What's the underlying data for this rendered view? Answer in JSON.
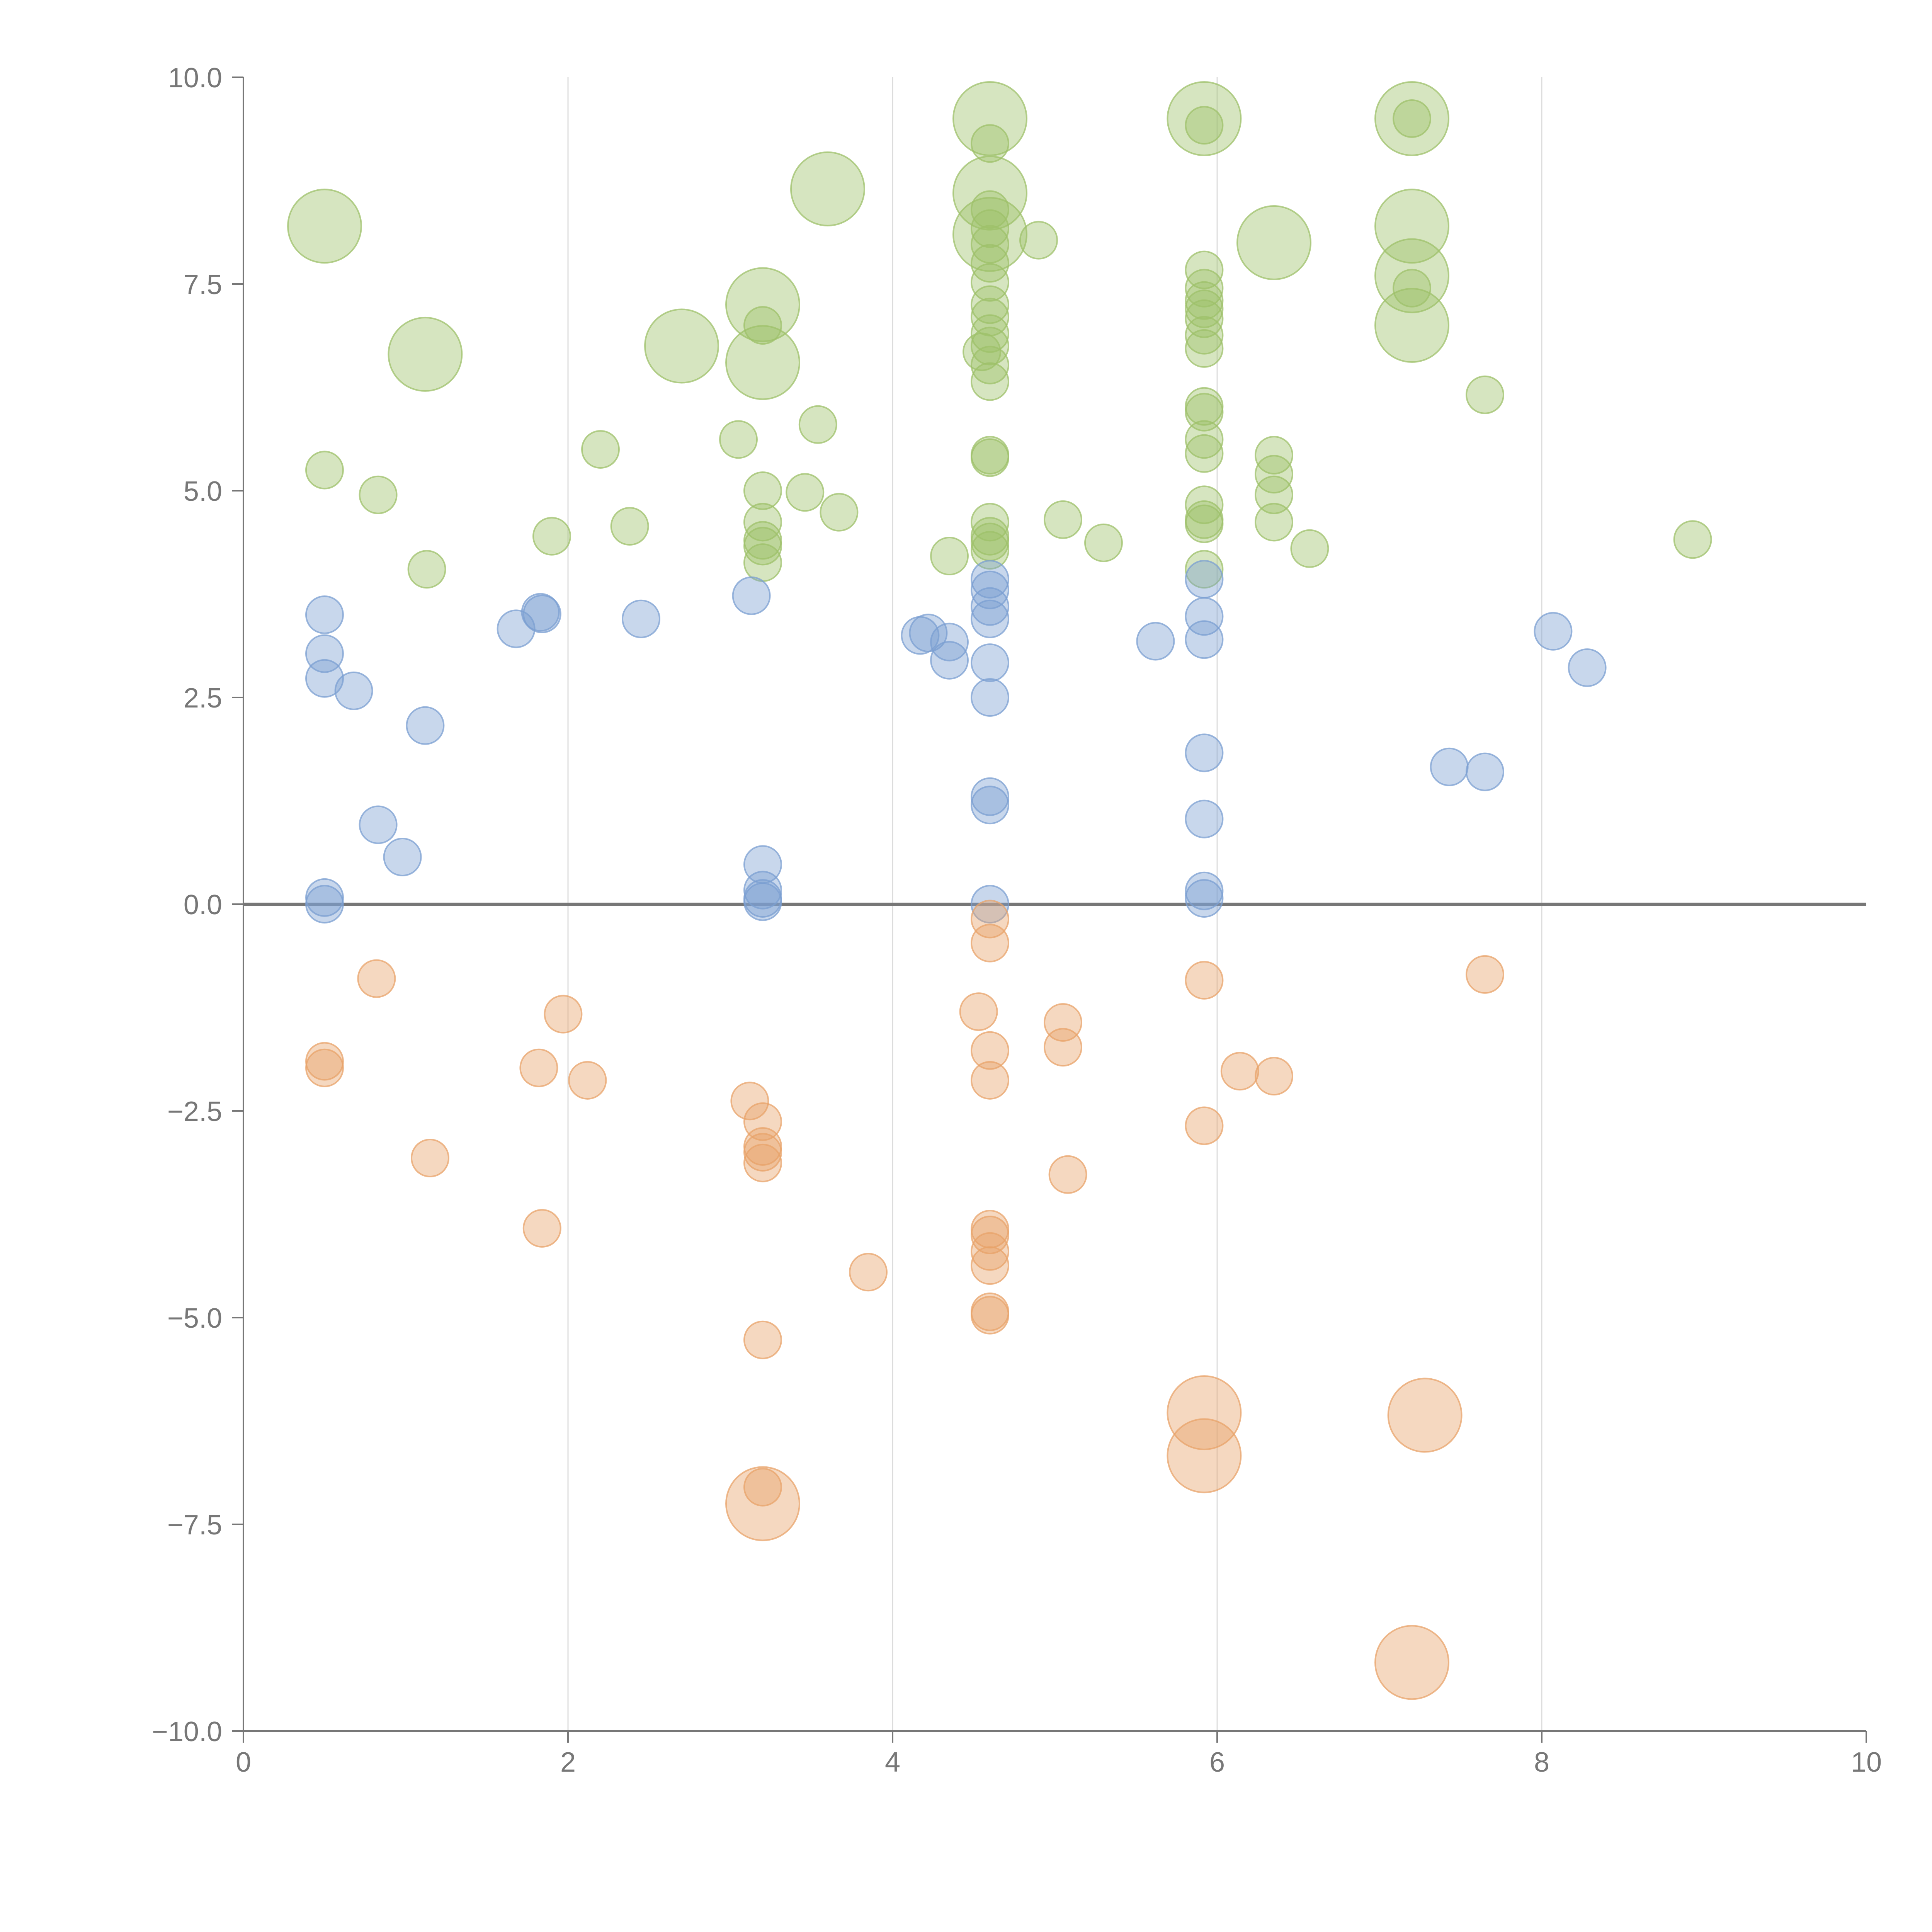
{
  "chart_data": {
    "type": "scatter",
    "title": "",
    "xlabel": "",
    "ylabel": "",
    "xlim": [
      0,
      10
    ],
    "ylim": [
      -10,
      10
    ],
    "x_ticks": [
      0,
      2,
      4,
      6,
      8,
      10
    ],
    "x_tick_labels": [
      "0",
      "2",
      "4",
      "6",
      "8",
      "10"
    ],
    "y_ticks": [
      10,
      7.5,
      5,
      2.5,
      0,
      -2.5,
      -5,
      -7.5,
      -10
    ],
    "y_tick_labels": [
      "10.0",
      "7.5",
      "5.0",
      "2.5",
      "0.0",
      "−2.5",
      "−5.0",
      "−7.5",
      "−10.0"
    ],
    "vertical_gridlines": [
      2,
      4,
      6,
      8
    ],
    "zero_line": 0,
    "legend": "none",
    "bubble_size": "small = 1, large = 3",
    "series": [
      {
        "name": "green",
        "color": "#9dc06a",
        "points": [
          {
            "x": 0.5,
            "y": 8.2,
            "size": 3
          },
          {
            "x": 1.12,
            "y": 6.65,
            "size": 3
          },
          {
            "x": 2.7,
            "y": 6.75,
            "size": 3
          },
          {
            "x": 3.2,
            "y": 7.25,
            "size": 3
          },
          {
            "x": 3.2,
            "y": 6.55,
            "size": 3
          },
          {
            "x": 3.6,
            "y": 8.65,
            "size": 3
          },
          {
            "x": 4.6,
            "y": 9.5,
            "size": 3
          },
          {
            "x": 4.6,
            "y": 8.6,
            "size": 3
          },
          {
            "x": 4.6,
            "y": 8.1,
            "size": 3
          },
          {
            "x": 5.92,
            "y": 9.5,
            "size": 3
          },
          {
            "x": 6.35,
            "y": 8.0,
            "size": 3
          },
          {
            "x": 7.2,
            "y": 9.5,
            "size": 3
          },
          {
            "x": 7.2,
            "y": 8.2,
            "size": 3
          },
          {
            "x": 7.2,
            "y": 7.6,
            "size": 3
          },
          {
            "x": 7.2,
            "y": 7.0,
            "size": 3
          },
          {
            "x": 0.5,
            "y": 5.25,
            "size": 1
          },
          {
            "x": 0.83,
            "y": 4.95,
            "size": 1
          },
          {
            "x": 1.13,
            "y": 4.05,
            "size": 1
          },
          {
            "x": 1.9,
            "y": 4.45,
            "size": 1
          },
          {
            "x": 2.2,
            "y": 5.5,
            "size": 1
          },
          {
            "x": 2.38,
            "y": 4.57,
            "size": 1
          },
          {
            "x": 3.05,
            "y": 5.62,
            "size": 1
          },
          {
            "x": 3.2,
            "y": 7.0,
            "size": 1
          },
          {
            "x": 3.2,
            "y": 5.0,
            "size": 1
          },
          {
            "x": 3.2,
            "y": 4.62,
            "size": 1
          },
          {
            "x": 3.2,
            "y": 4.4,
            "size": 1
          },
          {
            "x": 3.2,
            "y": 4.33,
            "size": 1
          },
          {
            "x": 3.2,
            "y": 4.13,
            "size": 1
          },
          {
            "x": 3.46,
            "y": 4.98,
            "size": 1
          },
          {
            "x": 3.54,
            "y": 5.8,
            "size": 1
          },
          {
            "x": 3.67,
            "y": 4.74,
            "size": 1
          },
          {
            "x": 4.35,
            "y": 4.21,
            "size": 1
          },
          {
            "x": 4.6,
            "y": 9.2,
            "size": 1
          },
          {
            "x": 4.6,
            "y": 8.4,
            "size": 1
          },
          {
            "x": 4.6,
            "y": 8.17,
            "size": 1
          },
          {
            "x": 4.6,
            "y": 7.98,
            "size": 1
          },
          {
            "x": 4.6,
            "y": 7.75,
            "size": 1
          },
          {
            "x": 4.6,
            "y": 7.52,
            "size": 1
          },
          {
            "x": 4.6,
            "y": 7.25,
            "size": 1
          },
          {
            "x": 4.6,
            "y": 7.1,
            "size": 1
          },
          {
            "x": 4.6,
            "y": 6.9,
            "size": 1
          },
          {
            "x": 4.6,
            "y": 6.75,
            "size": 1
          },
          {
            "x": 4.55,
            "y": 6.68,
            "size": 1
          },
          {
            "x": 4.6,
            "y": 6.52,
            "size": 1
          },
          {
            "x": 4.6,
            "y": 6.32,
            "size": 1
          },
          {
            "x": 4.6,
            "y": 5.43,
            "size": 1
          },
          {
            "x": 4.6,
            "y": 5.4,
            "size": 1
          },
          {
            "x": 4.6,
            "y": 4.62,
            "size": 1
          },
          {
            "x": 4.6,
            "y": 4.45,
            "size": 1
          },
          {
            "x": 4.6,
            "y": 4.28,
            "size": 1
          },
          {
            "x": 4.6,
            "y": 4.38,
            "size": 1
          },
          {
            "x": 4.9,
            "y": 8.03,
            "size": 1
          },
          {
            "x": 5.05,
            "y": 4.65,
            "size": 1
          },
          {
            "x": 5.3,
            "y": 4.37,
            "size": 1
          },
          {
            "x": 5.92,
            "y": 9.42,
            "size": 1
          },
          {
            "x": 5.92,
            "y": 7.67,
            "size": 1
          },
          {
            "x": 5.92,
            "y": 7.45,
            "size": 1
          },
          {
            "x": 5.92,
            "y": 7.3,
            "size": 1
          },
          {
            "x": 5.92,
            "y": 7.2,
            "size": 1
          },
          {
            "x": 5.92,
            "y": 7.08,
            "size": 1
          },
          {
            "x": 5.92,
            "y": 6.88,
            "size": 1
          },
          {
            "x": 5.92,
            "y": 6.72,
            "size": 1
          },
          {
            "x": 5.92,
            "y": 6.02,
            "size": 1
          },
          {
            "x": 5.92,
            "y": 5.95,
            "size": 1
          },
          {
            "x": 5.92,
            "y": 5.62,
            "size": 1
          },
          {
            "x": 5.92,
            "y": 5.45,
            "size": 1
          },
          {
            "x": 5.92,
            "y": 4.83,
            "size": 1
          },
          {
            "x": 5.92,
            "y": 4.65,
            "size": 1
          },
          {
            "x": 5.92,
            "y": 4.6,
            "size": 1
          },
          {
            "x": 5.92,
            "y": 4.05,
            "size": 1
          },
          {
            "x": 6.35,
            "y": 5.43,
            "size": 1
          },
          {
            "x": 6.35,
            "y": 5.2,
            "size": 1
          },
          {
            "x": 6.35,
            "y": 4.95,
            "size": 1
          },
          {
            "x": 6.35,
            "y": 4.62,
            "size": 1
          },
          {
            "x": 6.57,
            "y": 4.3,
            "size": 1
          },
          {
            "x": 7.2,
            "y": 9.5,
            "size": 1
          },
          {
            "x": 7.2,
            "y": 7.45,
            "size": 1
          },
          {
            "x": 7.65,
            "y": 6.16,
            "size": 1
          },
          {
            "x": 8.93,
            "y": 4.41,
            "size": 1
          }
        ]
      },
      {
        "name": "blue",
        "color": "#7b9fd1",
        "points": [
          {
            "x": 0.5,
            "y": 3.5,
            "size": 1
          },
          {
            "x": 0.5,
            "y": 3.03,
            "size": 1
          },
          {
            "x": 0.5,
            "y": 2.73,
            "size": 1
          },
          {
            "x": 0.68,
            "y": 2.58,
            "size": 1
          },
          {
            "x": 1.12,
            "y": 2.16,
            "size": 1
          },
          {
            "x": 0.83,
            "y": 0.96,
            "size": 1
          },
          {
            "x": 0.98,
            "y": 0.57,
            "size": 1
          },
          {
            "x": 0.5,
            "y": 0.08,
            "size": 1
          },
          {
            "x": 0.5,
            "y": 0.0,
            "size": 1
          },
          {
            "x": 1.68,
            "y": 3.33,
            "size": 1
          },
          {
            "x": 1.83,
            "y": 3.53,
            "size": 1
          },
          {
            "x": 1.84,
            "y": 3.51,
            "size": 1
          },
          {
            "x": 2.45,
            "y": 3.45,
            "size": 1
          },
          {
            "x": 3.13,
            "y": 3.73,
            "size": 1
          },
          {
            "x": 3.2,
            "y": 0.48,
            "size": 1
          },
          {
            "x": 3.2,
            "y": 0.17,
            "size": 1
          },
          {
            "x": 3.2,
            "y": 0.07,
            "size": 1
          },
          {
            "x": 3.2,
            "y": 0.03,
            "size": 1
          },
          {
            "x": 4.17,
            "y": 3.25,
            "size": 1
          },
          {
            "x": 4.22,
            "y": 3.28,
            "size": 1
          },
          {
            "x": 4.35,
            "y": 3.17,
            "size": 1
          },
          {
            "x": 4.35,
            "y": 2.95,
            "size": 1
          },
          {
            "x": 4.6,
            "y": 3.93,
            "size": 1
          },
          {
            "x": 4.6,
            "y": 3.8,
            "size": 1
          },
          {
            "x": 4.6,
            "y": 3.6,
            "size": 1
          },
          {
            "x": 4.6,
            "y": 3.45,
            "size": 1
          },
          {
            "x": 4.6,
            "y": 2.92,
            "size": 1
          },
          {
            "x": 4.6,
            "y": 2.5,
            "size": 1
          },
          {
            "x": 4.6,
            "y": 1.3,
            "size": 1
          },
          {
            "x": 4.6,
            "y": 1.2,
            "size": 1
          },
          {
            "x": 4.6,
            "y": 0.0,
            "size": 1
          },
          {
            "x": 5.62,
            "y": 3.18,
            "size": 1
          },
          {
            "x": 5.92,
            "y": 3.93,
            "size": 1
          },
          {
            "x": 5.92,
            "y": 3.48,
            "size": 1
          },
          {
            "x": 5.92,
            "y": 3.2,
            "size": 1
          },
          {
            "x": 5.92,
            "y": 1.83,
            "size": 1
          },
          {
            "x": 5.92,
            "y": 1.03,
            "size": 1
          },
          {
            "x": 5.92,
            "y": 0.16,
            "size": 1
          },
          {
            "x": 5.92,
            "y": 0.07,
            "size": 1
          },
          {
            "x": 7.43,
            "y": 1.66,
            "size": 1
          },
          {
            "x": 7.65,
            "y": 1.6,
            "size": 1
          },
          {
            "x": 8.07,
            "y": 3.3,
            "size": 1
          },
          {
            "x": 8.28,
            "y": 2.86,
            "size": 1
          }
        ]
      },
      {
        "name": "orange",
        "color": "#e8a36a",
        "points": [
          {
            "x": 0.82,
            "y": -0.9,
            "size": 1
          },
          {
            "x": 0.5,
            "y": -1.9,
            "size": 1
          },
          {
            "x": 0.5,
            "y": -1.98,
            "size": 1
          },
          {
            "x": 1.15,
            "y": -3.07,
            "size": 1
          },
          {
            "x": 1.82,
            "y": -1.98,
            "size": 1
          },
          {
            "x": 1.97,
            "y": -1.33,
            "size": 1
          },
          {
            "x": 2.12,
            "y": -2.13,
            "size": 1
          },
          {
            "x": 1.84,
            "y": -3.92,
            "size": 1
          },
          {
            "x": 3.12,
            "y": -2.38,
            "size": 1
          },
          {
            "x": 3.2,
            "y": -2.63,
            "size": 1
          },
          {
            "x": 3.2,
            "y": -2.93,
            "size": 1
          },
          {
            "x": 3.2,
            "y": -3.0,
            "size": 1
          },
          {
            "x": 3.2,
            "y": -3.13,
            "size": 1
          },
          {
            "x": 3.2,
            "y": -5.27,
            "size": 1
          },
          {
            "x": 3.2,
            "y": -7.05,
            "size": 1
          },
          {
            "x": 3.2,
            "y": -7.25,
            "size": 3
          },
          {
            "x": 3.85,
            "y": -4.45,
            "size": 1
          },
          {
            "x": 4.6,
            "y": -0.18,
            "size": 1
          },
          {
            "x": 4.6,
            "y": -0.47,
            "size": 1
          },
          {
            "x": 4.53,
            "y": -1.3,
            "size": 1
          },
          {
            "x": 4.6,
            "y": -1.77,
            "size": 1
          },
          {
            "x": 4.6,
            "y": -2.13,
            "size": 1
          },
          {
            "x": 4.6,
            "y": -3.93,
            "size": 1
          },
          {
            "x": 4.6,
            "y": -4.0,
            "size": 1
          },
          {
            "x": 4.6,
            "y": -4.2,
            "size": 1
          },
          {
            "x": 4.6,
            "y": -4.37,
            "size": 1
          },
          {
            "x": 4.6,
            "y": -4.93,
            "size": 1
          },
          {
            "x": 4.6,
            "y": -4.97,
            "size": 1
          },
          {
            "x": 5.05,
            "y": -1.43,
            "size": 1
          },
          {
            "x": 5.05,
            "y": -1.73,
            "size": 1
          },
          {
            "x": 5.08,
            "y": -3.27,
            "size": 1
          },
          {
            "x": 5.92,
            "y": -0.92,
            "size": 1
          },
          {
            "x": 5.92,
            "y": -2.68,
            "size": 1
          },
          {
            "x": 5.92,
            "y": -6.15,
            "size": 3
          },
          {
            "x": 5.92,
            "y": -6.67,
            "size": 3
          },
          {
            "x": 6.14,
            "y": -2.02,
            "size": 1
          },
          {
            "x": 6.35,
            "y": -2.08,
            "size": 1
          },
          {
            "x": 7.28,
            "y": -6.18,
            "size": 3
          },
          {
            "x": 7.2,
            "y": -9.17,
            "size": 3
          },
          {
            "x": 7.65,
            "y": -0.85,
            "size": 1
          }
        ]
      }
    ]
  }
}
